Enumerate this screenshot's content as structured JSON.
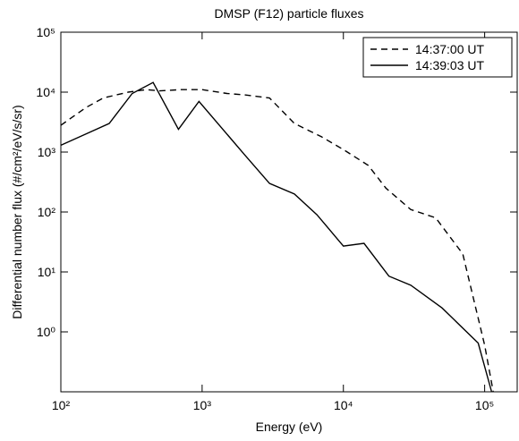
{
  "chart_data": {
    "type": "line",
    "title": "DMSP (F12) particle fluxes",
    "x_label": "Energy (eV)",
    "y_label": "Differential number flux (#/cm²/eV/s/sr)",
    "log_x": true,
    "log_y": true,
    "legend": "upper right",
    "xlim": [
      100,
      170000
    ],
    "ylim": [
      0.1,
      100000
    ],
    "xticks": [
      {
        "value": 100,
        "label": "10²"
      },
      {
        "value": 1000,
        "label": "10³"
      },
      {
        "value": 10000,
        "label": "10⁴"
      },
      {
        "value": 100000,
        "label": "10⁵"
      }
    ],
    "yticks": [
      {
        "value": 1,
        "label": "10⁰"
      },
      {
        "value": 10,
        "label": "10¹"
      },
      {
        "value": 100,
        "label": "10²"
      },
      {
        "value": 1000,
        "label": "10³"
      },
      {
        "value": 10000,
        "label": "10⁴"
      },
      {
        "value": 100000,
        "label": "10⁵"
      }
    ],
    "series": [
      {
        "name": "14:37:00 UT",
        "color": "#000000",
        "linestyle": "dashed",
        "x": [
          100,
          150,
          200,
          300,
          400,
          500,
          700,
          1000,
          1500,
          2000,
          3000,
          4500,
          7000,
          10000,
          15000,
          20000,
          30000,
          45000,
          70000,
          100000,
          115000
        ],
        "values": [
          2800,
          5500,
          8000,
          10000,
          11000,
          10500,
          11000,
          11000,
          9500,
          9000,
          8000,
          3000,
          1800,
          1100,
          600,
          250,
          110,
          80,
          20,
          0.6,
          0.1
        ]
      },
      {
        "name": "14:39:03 UT",
        "color": "#000000",
        "linestyle": "solid",
        "x": [
          100,
          150,
          220,
          320,
          450,
          680,
          950,
          2000,
          3000,
          4500,
          6500,
          10000,
          14000,
          21000,
          30000,
          50000,
          90000,
          112000
        ],
        "values": [
          1300,
          2000,
          3000,
          9500,
          14500,
          2400,
          7000,
          900,
          300,
          200,
          90,
          27,
          30,
          8.5,
          6,
          2.5,
          0.65,
          0.1
        ]
      }
    ]
  }
}
